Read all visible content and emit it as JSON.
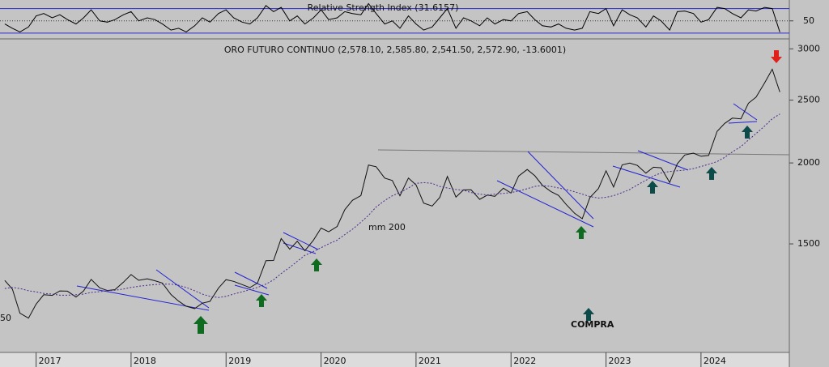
{
  "chart_data": [
    {
      "type": "line",
      "title": "Relative Strength Index (31.6157)",
      "x": [
        2016.67,
        2016.75,
        2016.83,
        2016.92,
        2017.0,
        2017.08,
        2017.17,
        2017.25,
        2017.33,
        2017.42,
        2017.5,
        2017.58,
        2017.67,
        2017.75,
        2017.83,
        2017.92,
        2018.0,
        2018.08,
        2018.17,
        2018.25,
        2018.33,
        2018.42,
        2018.5,
        2018.58,
        2018.67,
        2018.75,
        2018.83,
        2018.92,
        2019.0,
        2019.08,
        2019.17,
        2019.25,
        2019.33,
        2019.42,
        2019.5,
        2019.58,
        2019.67,
        2019.75,
        2019.83,
        2019.92,
        2020.0,
        2020.08,
        2020.17,
        2020.25,
        2020.33,
        2020.42,
        2020.5,
        2020.58,
        2020.67,
        2020.75,
        2020.83,
        2020.92,
        2021.0,
        2021.08,
        2021.17,
        2021.25,
        2021.33,
        2021.42,
        2021.5,
        2021.58,
        2021.67,
        2021.75,
        2021.83,
        2021.92,
        2022.0,
        2022.08,
        2022.17,
        2022.25,
        2022.33,
        2022.42,
        2022.5,
        2022.58,
        2022.67,
        2022.75,
        2022.83,
        2022.92,
        2023.0,
        2023.08,
        2023.17,
        2023.25,
        2023.33,
        2023.42,
        2023.5,
        2023.58,
        2023.67,
        2023.75,
        2023.83,
        2023.92,
        2024.0,
        2024.08,
        2024.17,
        2024.25,
        2024.33,
        2024.42,
        2024.5,
        2024.58,
        2024.67,
        2024.75,
        2024.83
      ],
      "series": [
        {
          "color": "#000000",
          "values": [
            45,
            38,
            32,
            40,
            58,
            62,
            55,
            60,
            52,
            45,
            55,
            68,
            50,
            48,
            52,
            60,
            65,
            50,
            55,
            52,
            45,
            35,
            38,
            32,
            42,
            55,
            48,
            62,
            68,
            55,
            48,
            45,
            55,
            75,
            65,
            72,
            50,
            58,
            45,
            55,
            68,
            52,
            55,
            65,
            62,
            60,
            78,
            62,
            45,
            50,
            38,
            58,
            45,
            35,
            40,
            55,
            70,
            38,
            55,
            50,
            42,
            55,
            45,
            52,
            50,
            62,
            65,
            52,
            42,
            40,
            45,
            38,
            35,
            38,
            65,
            62,
            70,
            42,
            68,
            60,
            55,
            40,
            58,
            50,
            35,
            65,
            66,
            62,
            48,
            52,
            72,
            70,
            62,
            55,
            68,
            66,
            72,
            70,
            31.6157
          ]
        }
      ],
      "xlim": [
        2016.62,
        2024.93
      ],
      "ylim": [
        22,
        80
      ],
      "yticks": [
        50
      ],
      "hlines": [
        30,
        70
      ],
      "hline_color": "#2a2ad0"
    },
    {
      "type": "line",
      "title": "ORO FUTURO CONTINUO (2,578.10, 2,585.80, 2,541.50, 2,572.90, -13.6001)",
      "x": [
        2016.67,
        2016.75,
        2016.83,
        2016.92,
        2017.0,
        2017.08,
        2017.17,
        2017.25,
        2017.33,
        2017.42,
        2017.5,
        2017.58,
        2017.67,
        2017.75,
        2017.83,
        2017.92,
        2018.0,
        2018.08,
        2018.17,
        2018.25,
        2018.33,
        2018.42,
        2018.5,
        2018.58,
        2018.67,
        2018.75,
        2018.83,
        2018.92,
        2019.0,
        2019.08,
        2019.17,
        2019.25,
        2019.33,
        2019.42,
        2019.5,
        2019.58,
        2019.67,
        2019.75,
        2019.83,
        2019.92,
        2020.0,
        2020.08,
        2020.17,
        2020.25,
        2020.33,
        2020.42,
        2020.5,
        2020.58,
        2020.67,
        2020.75,
        2020.83,
        2020.92,
        2021.0,
        2021.08,
        2021.17,
        2021.25,
        2021.33,
        2021.42,
        2021.5,
        2021.58,
        2021.67,
        2021.75,
        2021.83,
        2021.92,
        2022.0,
        2022.08,
        2022.17,
        2022.25,
        2022.33,
        2022.42,
        2022.5,
        2022.58,
        2022.67,
        2022.75,
        2022.83,
        2022.92,
        2023.0,
        2023.08,
        2023.17,
        2023.25,
        2023.33,
        2023.42,
        2023.5,
        2023.58,
        2023.67,
        2023.75,
        2023.83,
        2023.92,
        2024.0,
        2024.08,
        2024.17,
        2024.25,
        2024.33,
        2024.42,
        2024.5,
        2024.58,
        2024.67,
        2024.75,
        2024.83
      ],
      "series": [
        {
          "color": "#111111",
          "values": [
            1317,
            1277,
            1173,
            1152,
            1211,
            1252,
            1249,
            1269,
            1268,
            1242,
            1269,
            1322,
            1283,
            1271,
            1275,
            1309,
            1345,
            1318,
            1325,
            1316,
            1305,
            1253,
            1224,
            1202,
            1192,
            1215,
            1223,
            1282,
            1321,
            1313,
            1298,
            1284,
            1305,
            1413,
            1414,
            1529,
            1472,
            1514,
            1464,
            1520,
            1587,
            1566,
            1596,
            1694,
            1751,
            1781,
            1985,
            1973,
            1895,
            1879,
            1780,
            1895,
            1850,
            1734,
            1716,
            1769,
            1906,
            1771,
            1817,
            1818,
            1757,
            1784,
            1776,
            1828,
            1797,
            1909,
            1954,
            1911,
            1848,
            1807,
            1782,
            1726,
            1672,
            1640,
            1768,
            1826,
            1945,
            1836,
            1986,
            1999,
            1982,
            1929,
            1970,
            1966,
            1866,
            1994,
            2057,
            2071,
            2048,
            2054,
            2238,
            2302,
            2345,
            2339,
            2473,
            2527,
            2659,
            2790,
            2572.9
          ]
        },
        {
          "name": "mm 200",
          "color": "#4b2a8a",
          "dash": true,
          "values": [
            1280,
            1285,
            1280,
            1270,
            1265,
            1258,
            1255,
            1250,
            1250,
            1252,
            1255,
            1262,
            1266,
            1270,
            1272,
            1278,
            1285,
            1290,
            1295,
            1298,
            1300,
            1300,
            1295,
            1285,
            1270,
            1255,
            1245,
            1240,
            1245,
            1255,
            1265,
            1275,
            1285,
            1300,
            1320,
            1350,
            1380,
            1410,
            1440,
            1460,
            1480,
            1500,
            1520,
            1550,
            1580,
            1620,
            1660,
            1710,
            1750,
            1780,
            1800,
            1830,
            1860,
            1865,
            1860,
            1840,
            1830,
            1820,
            1815,
            1800,
            1790,
            1785,
            1790,
            1795,
            1800,
            1810,
            1825,
            1840,
            1845,
            1840,
            1830,
            1820,
            1805,
            1790,
            1775,
            1765,
            1770,
            1780,
            1800,
            1820,
            1850,
            1880,
            1910,
            1930,
            1940,
            1945,
            1950,
            1960,
            1975,
            1990,
            2010,
            2040,
            2080,
            2120,
            2170,
            2220,
            2280,
            2340,
            2380
          ]
        }
      ],
      "log_scale": true,
      "xlim": [
        2016.62,
        2024.93
      ],
      "xticks": [
        2017,
        2018,
        2019,
        2020,
        2021,
        2022,
        2023,
        2024
      ],
      "ylim": [
        1020,
        3090
      ],
      "yticks": [
        1500,
        2000,
        2500,
        3000
      ],
      "annotations": [
        "COMPRA",
        "50"
      ]
    }
  ]
}
